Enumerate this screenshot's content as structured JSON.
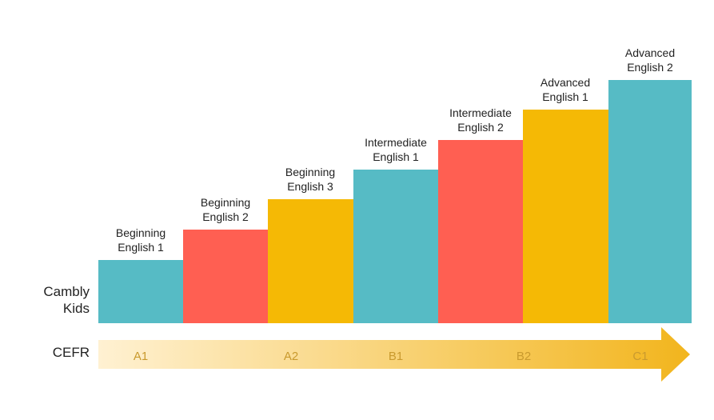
{
  "row_labels": {
    "program_line1": "Cambly",
    "program_line2": "Kids",
    "scale": "CEFR"
  },
  "steps": [
    {
      "line1": "Beginning",
      "line2": "English 1",
      "color": "#56BBC5"
    },
    {
      "line1": "Beginning",
      "line2": "English 2",
      "color": "#FF5F52"
    },
    {
      "line1": "Beginning",
      "line2": "English 3",
      "color": "#F5B905"
    },
    {
      "line1": "Intermediate",
      "line2": "English 1",
      "color": "#56BBC5"
    },
    {
      "line1": "Intermediate",
      "line2": "English 2",
      "color": "#FF5F52"
    },
    {
      "line1": "Advanced",
      "line2": "English 1",
      "color": "#F5B905"
    },
    {
      "line1": "Advanced",
      "line2": "English 2",
      "color": "#56BBC5"
    }
  ],
  "cefr_levels": [
    "A1",
    "A2",
    "B1",
    "B2",
    "C1"
  ],
  "colors": {
    "arrow_light": "#FFF1D2",
    "arrow_dark": "#F2B51D",
    "level_text": "#C99A2E"
  }
}
